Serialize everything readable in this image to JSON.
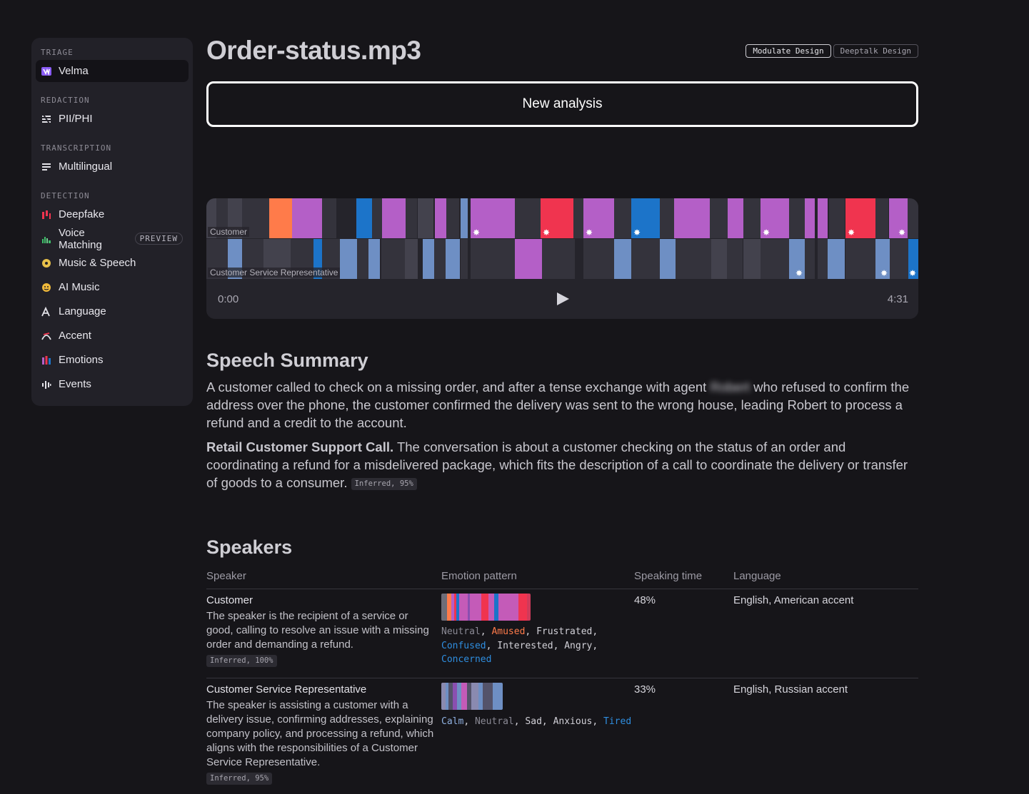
{
  "sidebar": {
    "sections": [
      {
        "label": "TRIAGE",
        "items": [
          {
            "label": "Velma",
            "icon": "velma-logo-icon"
          }
        ]
      },
      {
        "label": "REDACTION",
        "items": [
          {
            "label": "PII/PHI",
            "icon": "redaction-icon"
          }
        ]
      },
      {
        "label": "TRANSCRIPTION",
        "items": [
          {
            "label": "Multilingual",
            "icon": "lines-icon"
          }
        ]
      },
      {
        "label": "DETECTION",
        "items": [
          {
            "label": "Deepfake",
            "icon": "deepfake-icon"
          },
          {
            "label": "Voice Matching",
            "icon": "voice-matching-icon",
            "badge": "PREVIEW"
          },
          {
            "label": "Music & Speech",
            "icon": "disc-icon"
          },
          {
            "label": "AI Music",
            "icon": "ai-music-icon"
          },
          {
            "label": "Language",
            "icon": "language-icon"
          },
          {
            "label": "Accent",
            "icon": "accent-icon"
          },
          {
            "label": "Emotions",
            "icon": "emotions-icon"
          },
          {
            "label": "Events",
            "icon": "events-icon"
          }
        ]
      }
    ]
  },
  "header": {
    "title": "Order-status.mp3",
    "design_tabs": [
      "Modulate Design",
      "Deeptalk Design"
    ],
    "new_analysis_label": "New analysis"
  },
  "player": {
    "track1_label": "Customer",
    "track2_label": "Customer Service Representative",
    "time_start": "0:00",
    "time_end": "4:31",
    "colors": {
      "neutral": "#43424d",
      "dark": "#34333c",
      "amused": "#ff7b4a",
      "frustrated": "#b45fc7",
      "confused": "#1c74c9",
      "angry": "#f0344f",
      "calm": "#6e8fc4",
      "divider": "#25242b"
    }
  },
  "summary": {
    "heading": "Speech Summary",
    "p1_before": "A customer called to check on a missing order, and after a tense exchange with agent",
    "p1_redacted": "Robert",
    "p1_after": "who refused to confirm the address over the phone, the customer confirmed the delivery was sent to the wrong house, leading Robert to process a refund and a credit to the account.",
    "p2_bold": "Retail Customer Support Call.",
    "p2_text": "The conversation is about a customer checking on the status of an order and coordinating a refund for a misdelivered package, which fits the description of a call to coordinate the delivery or transfer of goods to a consumer.",
    "p2_tag": "Inferred, 95%"
  },
  "speakers": {
    "heading": "Speakers",
    "columns": [
      "Speaker",
      "Emotion pattern",
      "Speaking time",
      "Language"
    ],
    "rows": [
      {
        "name": "Customer",
        "description": "The speaker is the recipient of a service or good, calling to resolve an issue with a missing order and demanding a refund.",
        "tag": "Inferred, 100%",
        "emotions": [
          {
            "label": "Neutral",
            "color": "#8a8994"
          },
          {
            "label": "Amused",
            "color": "#ff7b4a"
          },
          {
            "label": "Frustrated",
            "color": "#d2d1d8"
          },
          {
            "label": "Confused",
            "color": "#2f8ee0"
          },
          {
            "label": "Interested",
            "color": "#d2d1d8"
          },
          {
            "label": "Angry",
            "color": "#d2d1d8"
          },
          {
            "label": "Concerned",
            "color": "#2f8ee0"
          }
        ],
        "speaking_time": "48%",
        "language": "English, American accent"
      },
      {
        "name": "Customer Service Representative",
        "description": "The speaker is assisting a customer with a delivery issue, confirming addresses, explaining company policy, and processing a refund, which aligns with the responsibilities of a Customer Service Representative.",
        "tag": "Inferred, 95%",
        "emotions": [
          {
            "label": "Calm",
            "color": "#8fb0e0"
          },
          {
            "label": "Neutral",
            "color": "#8a8994"
          },
          {
            "label": "Sad",
            "color": "#d2d1d8"
          },
          {
            "label": "Anxious",
            "color": "#d2d1d8"
          },
          {
            "label": "Tired",
            "color": "#2f8ee0"
          }
        ],
        "speaking_time": "33%",
        "language": "English, Russian accent"
      }
    ]
  }
}
